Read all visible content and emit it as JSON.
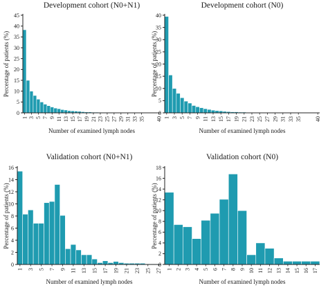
{
  "colors": {
    "bar": "#1f9bb0",
    "bar_edge": "#ffffff",
    "axis": "#222222"
  },
  "chart_data": [
    {
      "type": "bar",
      "title": "Development cohort (N0+N1)",
      "xlabel": "Number of examined lymph nodes",
      "ylabel": "Percentage of patients (%)",
      "ylim": [
        0,
        45
      ],
      "yticks": [
        0,
        5,
        10,
        15,
        20,
        25,
        30,
        35,
        40,
        45
      ],
      "categories": [
        "1",
        "2",
        "3",
        "4",
        "5",
        "6",
        "7",
        "8",
        "9",
        "10",
        "11",
        "12",
        "13",
        "14",
        "15",
        "16",
        "17",
        "18",
        "19",
        "20",
        "21",
        "22",
        "23",
        "24",
        "25",
        "26",
        "27",
        "28",
        "29",
        "30",
        "31",
        "32",
        "33",
        "34",
        "35",
        "36",
        "37",
        "38",
        "39",
        "40"
      ],
      "xtick_labels": [
        "1",
        "3",
        "5",
        "7",
        "9",
        "11",
        "13",
        "15",
        "17",
        "19",
        "21",
        "23",
        "25",
        "27",
        "29",
        "31",
        "33",
        "35",
        "40"
      ],
      "values": [
        38.3,
        15.0,
        10.0,
        8.0,
        6.3,
        5.0,
        4.0,
        3.3,
        2.7,
        2.2,
        1.9,
        1.5,
        1.3,
        1.0,
        0.9,
        0.8,
        0.7,
        0.5,
        0.4,
        0.4,
        0.3,
        0.3,
        0.2,
        0.2,
        0.2,
        0.2,
        0.1,
        0.1,
        0.1,
        0.1,
        0.1,
        0.1,
        0.1,
        0.1,
        0.1,
        0.1,
        0.1,
        0.1,
        0.1,
        0.1
      ]
    },
    {
      "type": "bar",
      "title": "Development cohort (N0)",
      "xlabel": "Number of examined lymph nodes",
      "ylabel": "Percentage of patients (%)",
      "ylim": [
        0,
        40
      ],
      "yticks": [
        0,
        5,
        10,
        15,
        20,
        25,
        30,
        35,
        40
      ],
      "categories": [
        "1",
        "2",
        "3",
        "4",
        "5",
        "6",
        "7",
        "8",
        "9",
        "10",
        "11",
        "12",
        "13",
        "14",
        "15",
        "16",
        "17",
        "18",
        "19",
        "20",
        "21",
        "22",
        "23",
        "24",
        "25",
        "26",
        "27",
        "28",
        "29",
        "30",
        "31",
        "32",
        "33",
        "34",
        "35",
        "36",
        "37",
        "38",
        "39",
        "40"
      ],
      "xtick_labels": [
        "1",
        "3",
        "5",
        "7",
        "9",
        "11",
        "13",
        "15",
        "17",
        "19",
        "21",
        "23",
        "25",
        "27",
        "29",
        "31",
        "33",
        "35",
        "40"
      ],
      "values": [
        39.5,
        15.5,
        10.0,
        8.0,
        6.2,
        4.8,
        4.0,
        3.0,
        2.5,
        2.1,
        1.7,
        1.4,
        1.1,
        0.9,
        0.8,
        0.6,
        0.5,
        0.4,
        0.4,
        0.3,
        0.3,
        0.2,
        0.2,
        0.2,
        0.1,
        0.1,
        0.1,
        0.1,
        0.1,
        0.1,
        0.1,
        0.1,
        0.1,
        0.1,
        0.1,
        0.1,
        0.1,
        0.1,
        0.1,
        0.1
      ]
    },
    {
      "type": "bar",
      "title": "Validation cohort (N0+N1)",
      "xlabel": "Number of examined lymph nodes",
      "ylabel": "Percentage of patients (%)",
      "ylim": [
        0,
        16
      ],
      "yticks": [
        0,
        2,
        4,
        6,
        8,
        10,
        12,
        14,
        16
      ],
      "categories": [
        "1",
        "2",
        "3",
        "4",
        "5",
        "6",
        "7",
        "8",
        "9",
        "10",
        "11",
        "12",
        "13",
        "14",
        "15",
        "16",
        "17",
        "18",
        "19",
        "20",
        "21",
        "22",
        "23",
        "24",
        "25",
        "26",
        "27"
      ],
      "xtick_labels": [
        "1",
        "3",
        "5",
        "7",
        "9",
        "11",
        "13",
        "15",
        "17",
        "19",
        "21",
        "23",
        "25",
        "27"
      ],
      "values": [
        15.4,
        8.3,
        9.0,
        6.8,
        6.8,
        10.2,
        10.4,
        13.2,
        8.1,
        2.6,
        3.3,
        2.4,
        1.6,
        1.6,
        0.9,
        0.3,
        0.6,
        0.3,
        0.5,
        0.3,
        0.2,
        0.2,
        0.2,
        0.2,
        0.1,
        0.1,
        0.1
      ]
    },
    {
      "type": "bar",
      "title": "Validation cohort (N0)",
      "xlabel": "Number of examined lymph nodes",
      "ylabel": "Percentage of patients (%)",
      "ylim": [
        0,
        18
      ],
      "yticks": [
        0,
        2,
        4,
        6,
        8,
        10,
        12,
        14,
        16,
        18
      ],
      "categories": [
        "1",
        "2",
        "3",
        "4",
        "5",
        "6",
        "7",
        "8",
        "9",
        "10",
        "11",
        "12",
        "13",
        "14",
        "15",
        "16",
        "17"
      ],
      "xtick_labels": [
        "1",
        "2",
        "3",
        "4",
        "5",
        "6",
        "7",
        "8",
        "9",
        "10",
        "11",
        "12",
        "13",
        "14",
        "15",
        "16",
        "17"
      ],
      "values": [
        13.4,
        7.4,
        7.0,
        4.8,
        8.2,
        9.5,
        12.1,
        16.8,
        10.0,
        1.8,
        4.0,
        3.0,
        1.2,
        0.6,
        0.6,
        0.6,
        0.6
      ]
    }
  ]
}
